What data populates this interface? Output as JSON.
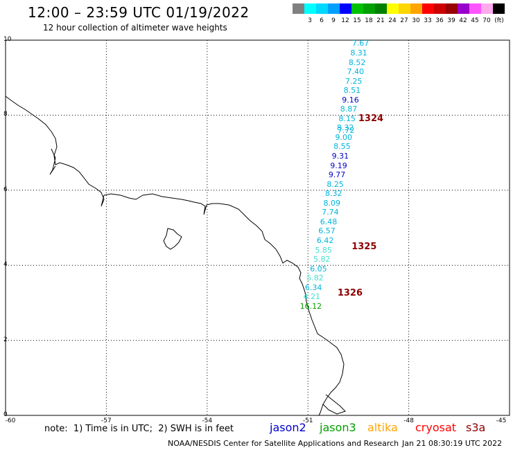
{
  "header": {
    "title": "12:00 – 23:59 UTC 01/19/2022",
    "subtitle": "12 hour collection of altimeter wave heights"
  },
  "color_scale": {
    "unit": "(ft)",
    "swatches": [
      {
        "color": "#808080",
        "label": ""
      },
      {
        "color": "#00ffff",
        "label": "3"
      },
      {
        "color": "#00d8ff",
        "label": "6"
      },
      {
        "color": "#00a0ff",
        "label": "9"
      },
      {
        "color": "#0000ff",
        "label": "12"
      },
      {
        "color": "#00c000",
        "label": "15"
      },
      {
        "color": "#00a000",
        "label": "18"
      },
      {
        "color": "#008000",
        "label": "21"
      },
      {
        "color": "#ffff00",
        "label": "24"
      },
      {
        "color": "#ffd700",
        "label": "27"
      },
      {
        "color": "#ffa500",
        "label": "30"
      },
      {
        "color": "#ff0000",
        "label": "33"
      },
      {
        "color": "#cc0000",
        "label": "36"
      },
      {
        "color": "#990000",
        "label": "39"
      },
      {
        "color": "#9900cc",
        "label": "42"
      },
      {
        "color": "#ff55ff",
        "label": "45"
      },
      {
        "color": "#ffaaee",
        "label": "70"
      },
      {
        "color": "#000000",
        "label": ""
      }
    ]
  },
  "map": {
    "lon_range": [
      -60,
      -45
    ],
    "lat_range": [
      0,
      10
    ],
    "x_ticks": [
      "-60",
      "-57",
      "-54",
      "-51",
      "-48",
      "-45"
    ],
    "y_ticks": [
      "0",
      "2",
      "4",
      "6",
      "8",
      "10"
    ],
    "passes": [
      {
        "label": "1324",
        "lon": -49.5,
        "lat": 7.9
      },
      {
        "label": "1325",
        "lon": -49.7,
        "lat": 4.49
      },
      {
        "label": "1326",
        "lon": -50.12,
        "lat": 3.25
      }
    ],
    "wave_heights": [
      {
        "value": "7.67",
        "lon": -49.4,
        "lat": 9.9,
        "color": "#00b4dc"
      },
      {
        "value": "8.31",
        "lon": -49.45,
        "lat": 9.65,
        "color": "#00b4dc"
      },
      {
        "value": "8.52",
        "lon": -49.5,
        "lat": 9.4,
        "color": "#00b4dc"
      },
      {
        "value": "7.40",
        "lon": -49.55,
        "lat": 9.15,
        "color": "#00b4dc"
      },
      {
        "value": "7.25",
        "lon": -49.6,
        "lat": 8.9,
        "color": "#00b4dc"
      },
      {
        "value": "8.51",
        "lon": -49.65,
        "lat": 8.65,
        "color": "#00b4dc"
      },
      {
        "value": "9.16",
        "lon": -49.7,
        "lat": 8.4,
        "color": "#0000cd"
      },
      {
        "value": "8.87",
        "lon": -49.75,
        "lat": 8.15,
        "color": "#00b4dc"
      },
      {
        "value": "8.15",
        "lon": -49.8,
        "lat": 7.9,
        "color": "#00b4dc"
      },
      {
        "value": "8.32",
        "lon": -49.85,
        "lat": 7.65,
        "color": "#00b4dc"
      },
      {
        "value": "7.72",
        "lon": -49.83,
        "lat": 7.58,
        "color": "#00b4dc"
      },
      {
        "value": "9.00",
        "lon": -49.9,
        "lat": 7.4,
        "color": "#00b4dc"
      },
      {
        "value": "8.55",
        "lon": -49.95,
        "lat": 7.15,
        "color": "#00b4dc"
      },
      {
        "value": "9.31",
        "lon": -50.0,
        "lat": 6.9,
        "color": "#0000cd"
      },
      {
        "value": "9.19",
        "lon": -50.05,
        "lat": 6.65,
        "color": "#0000cd"
      },
      {
        "value": "9.77",
        "lon": -50.1,
        "lat": 6.4,
        "color": "#0000cd"
      },
      {
        "value": "8.25",
        "lon": -50.15,
        "lat": 6.15,
        "color": "#00b4dc"
      },
      {
        "value": "8.32",
        "lon": -50.2,
        "lat": 5.9,
        "color": "#00b4dc"
      },
      {
        "value": "8.09",
        "lon": -50.25,
        "lat": 5.65,
        "color": "#00b4dc"
      },
      {
        "value": "7.74",
        "lon": -50.3,
        "lat": 5.4,
        "color": "#00b4dc"
      },
      {
        "value": "6.48",
        "lon": -50.35,
        "lat": 5.15,
        "color": "#00b4dc"
      },
      {
        "value": "6.57",
        "lon": -50.4,
        "lat": 4.9,
        "color": "#00b4dc"
      },
      {
        "value": "6.42",
        "lon": -50.45,
        "lat": 4.65,
        "color": "#00b4dc"
      },
      {
        "value": "5.85",
        "lon": -50.5,
        "lat": 4.4,
        "color": "#40e0d0"
      },
      {
        "value": "5.82",
        "lon": -50.55,
        "lat": 4.15,
        "color": "#40e0d0"
      },
      {
        "value": "6.05",
        "lon": -50.65,
        "lat": 3.9,
        "color": "#00b4dc"
      },
      {
        "value": "5.82",
        "lon": -50.75,
        "lat": 3.65,
        "color": "#40e0d0"
      },
      {
        "value": "6.34",
        "lon": -50.8,
        "lat": 3.4,
        "color": "#00b4dc"
      },
      {
        "value": "4.21",
        "lon": -50.85,
        "lat": 3.15,
        "color": "#40e0d0"
      },
      {
        "value": "16.12",
        "lon": -50.95,
        "lat": 2.9,
        "color": "#00a000"
      }
    ]
  },
  "footer": {
    "note": "note:  1) Time is in UTC;  2) SWH is in feet",
    "satellites": [
      {
        "name": "jason2",
        "color": "#0000cd"
      },
      {
        "name": "jason3",
        "color": "#00a000"
      },
      {
        "name": "altika",
        "color": "#ffa500"
      },
      {
        "name": "cryosat",
        "color": "#ff0000"
      },
      {
        "name": "s3a",
        "color": "#8b0000"
      }
    ],
    "credit": "NOAA/NESDIS Center for Satellite Applications and Research",
    "timestamp": "Jan 21 08:30:19 UTC 2022"
  }
}
